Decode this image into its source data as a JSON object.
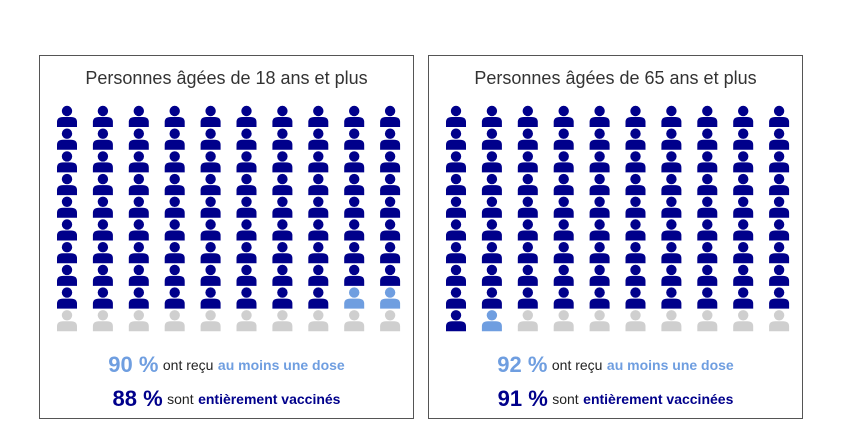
{
  "colors": {
    "fully_vaccinated": "#00008b",
    "one_dose": "#6f9ee0",
    "not_vaccinated": "#cfcfcf",
    "text": "#222222"
  },
  "icon": "person-icon",
  "chart_data": [
    {
      "type": "pictogram",
      "title": "Personnes âgées de 18 ans et plus",
      "icons_total": 100,
      "series": [
        {
          "name": "au moins une dose",
          "value": 90,
          "unit": "%"
        },
        {
          "name": "entièrement vaccinés",
          "value": 88,
          "unit": "%"
        }
      ],
      "legend": [
        {
          "value_label": "90 %",
          "text": "ont reçu",
          "emphasis": "au moins une dose"
        },
        {
          "value_label": "88 %",
          "text": "sont",
          "emphasis": "entièrement vaccinés"
        }
      ]
    },
    {
      "type": "pictogram",
      "title": "Personnes âgées de 65 ans et plus",
      "icons_total": 100,
      "series": [
        {
          "name": "au moins une dose",
          "value": 92,
          "unit": "%"
        },
        {
          "name": "entièrement vaccinées",
          "value": 91,
          "unit": "%"
        }
      ],
      "legend": [
        {
          "value_label": "92 %",
          "text": "ont reçu",
          "emphasis": "au moins une dose"
        },
        {
          "value_label": "91 %",
          "text": "sont",
          "emphasis": "entièrement vaccinées"
        }
      ]
    }
  ]
}
